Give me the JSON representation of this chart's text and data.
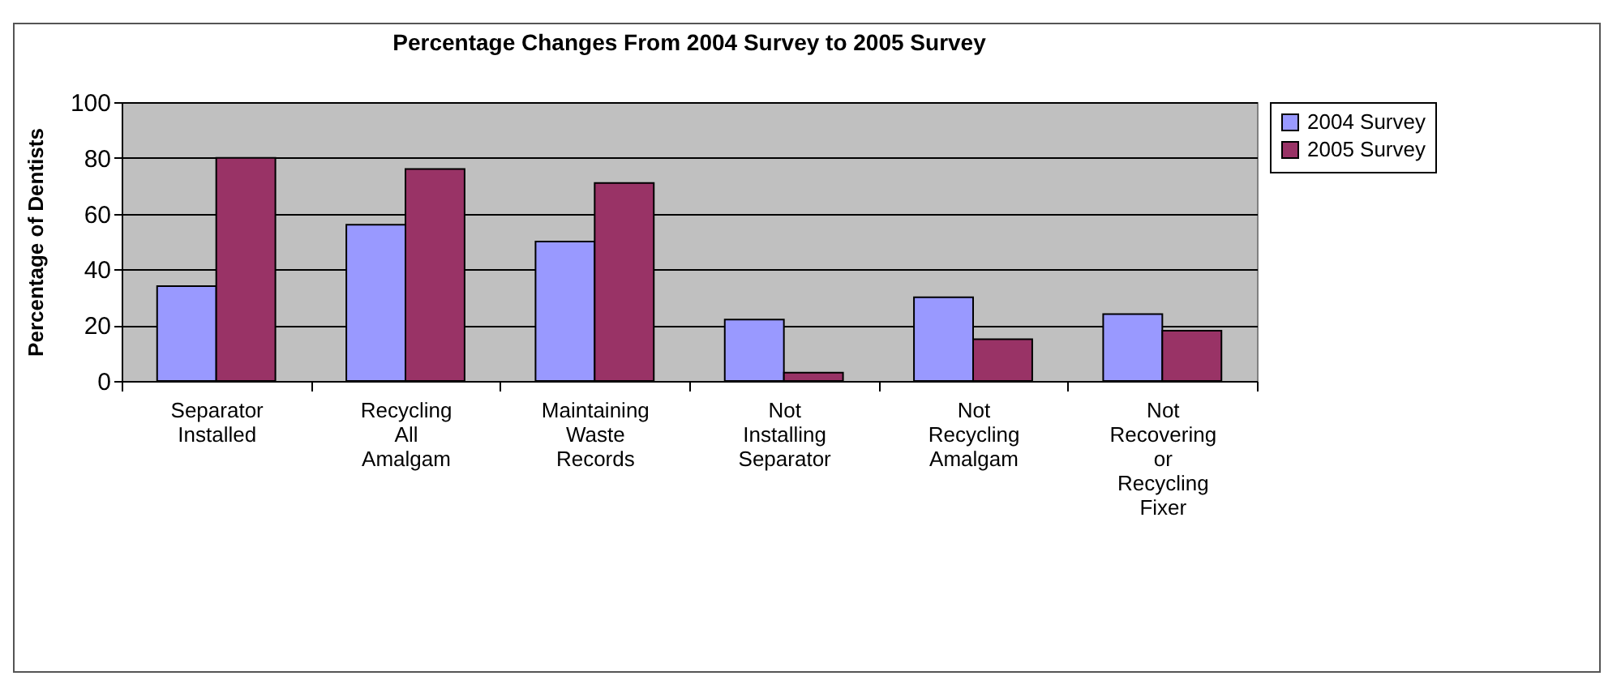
{
  "chart_data": {
    "type": "bar",
    "title": "Percentage Changes From 2004 Survey to 2005 Survey",
    "ylabel": "Percentage of Dentists",
    "categories": [
      "Separator Installed",
      "Recycling All Amalgam",
      "Maintaining Waste Records",
      "Not Installing Separator",
      "Not Recycling Amalgam",
      "Not Recovering or Recycling Fixer"
    ],
    "series": [
      {
        "name": "2004 Survey",
        "color": "#9999ff",
        "values": [
          34,
          56,
          50,
          22,
          30,
          24
        ]
      },
      {
        "name": "2005 Survey",
        "color": "#993366",
        "values": [
          80,
          76,
          71,
          3,
          15,
          18
        ]
      }
    ],
    "ylim": [
      0,
      100
    ],
    "yticks": [
      0,
      20,
      40,
      60,
      80,
      100
    ],
    "grid": "y",
    "legend": "right"
  }
}
